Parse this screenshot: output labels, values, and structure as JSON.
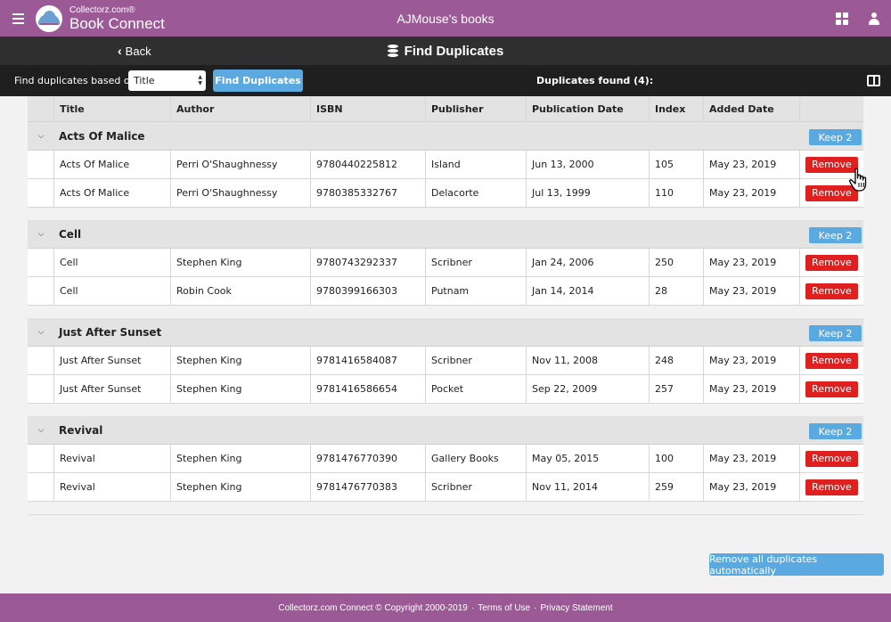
{
  "header": {
    "brand_small": "Collectorz.com®",
    "brand_big": "Book Connect",
    "title": "AJMouse's books",
    "icons": [
      "menu-icon",
      "grid-icon",
      "user-icon"
    ]
  },
  "nav": {
    "back_label": "Back",
    "page_title": "Find Duplicates",
    "icons": [
      "chevron-left-icon",
      "database-icon"
    ]
  },
  "toolbar": {
    "based_on_label": "Find duplicates based on",
    "field_value": "Title",
    "find_button": "Find Duplicates",
    "dups_found": "Duplicates found (4):",
    "icons": [
      "columns-icon"
    ]
  },
  "table": {
    "columns": [
      "Title",
      "Author",
      "ISBN",
      "Publisher",
      "Publication Date",
      "Index",
      "Added Date"
    ],
    "groups": [
      {
        "title": "Acts Of Malice",
        "keep_label": "Keep 2",
        "rows": [
          {
            "title": "Acts Of Malice",
            "author": "Perri O'Shaughnessy",
            "isbn": "9780440225812",
            "publisher": "Island",
            "pub_date": "Jun 13, 2000",
            "index": "105",
            "added": "May 23, 2019",
            "remove": "Remove"
          },
          {
            "title": "Acts Of Malice",
            "author": "Perri O'Shaughnessy",
            "isbn": "9780385332767",
            "publisher": "Delacorte",
            "pub_date": "Jul 13, 1999",
            "index": "110",
            "added": "May 23, 2019",
            "remove": "Remove"
          }
        ]
      },
      {
        "title": "Cell",
        "keep_label": "Keep 2",
        "rows": [
          {
            "title": "Cell",
            "author": "Stephen King",
            "isbn": "9780743292337",
            "publisher": "Scribner",
            "pub_date": "Jan 24, 2006",
            "index": "250",
            "added": "May 23, 2019",
            "remove": "Remove"
          },
          {
            "title": "Cell",
            "author": "Robin Cook",
            "isbn": "9780399166303",
            "publisher": "Putnam",
            "pub_date": "Jan 14, 2014",
            "index": "28",
            "added": "May 23, 2019",
            "remove": "Remove"
          }
        ]
      },
      {
        "title": "Just After Sunset",
        "keep_label": "Keep 2",
        "rows": [
          {
            "title": "Just After Sunset",
            "author": "Stephen King",
            "isbn": "9781416584087",
            "publisher": "Scribner",
            "pub_date": "Nov 11, 2008",
            "index": "248",
            "added": "May 23, 2019",
            "remove": "Remove"
          },
          {
            "title": "Just After Sunset",
            "author": "Stephen King",
            "isbn": "9781416586654",
            "publisher": "Pocket",
            "pub_date": "Sep 22, 2009",
            "index": "257",
            "added": "May 23, 2019",
            "remove": "Remove"
          }
        ]
      },
      {
        "title": "Revival",
        "keep_label": "Keep 2",
        "rows": [
          {
            "title": "Revival",
            "author": "Stephen King",
            "isbn": "9781476770390",
            "publisher": "Gallery Books",
            "pub_date": "May 05, 2015",
            "index": "100",
            "added": "May 23, 2019",
            "remove": "Remove"
          },
          {
            "title": "Revival",
            "author": "Stephen King",
            "isbn": "9781476770383",
            "publisher": "Scribner",
            "pub_date": "Nov 11, 2014",
            "index": "259",
            "added": "May 23, 2019",
            "remove": "Remove"
          }
        ]
      }
    ]
  },
  "remove_all_label": "Remove all duplicates automatically",
  "footer": {
    "copyright": "Collectorz.com Connect © Copyright 2000-2019",
    "separator": "·",
    "terms": "Terms of Use",
    "privacy": "Privacy Statement"
  },
  "colors": {
    "brand": "#9b5a95",
    "dark_bar": "#2f2f2f",
    "toolbar": "#1f1f1f",
    "accent_blue": "#5aa9e0",
    "remove_red": "#e01f1f"
  }
}
